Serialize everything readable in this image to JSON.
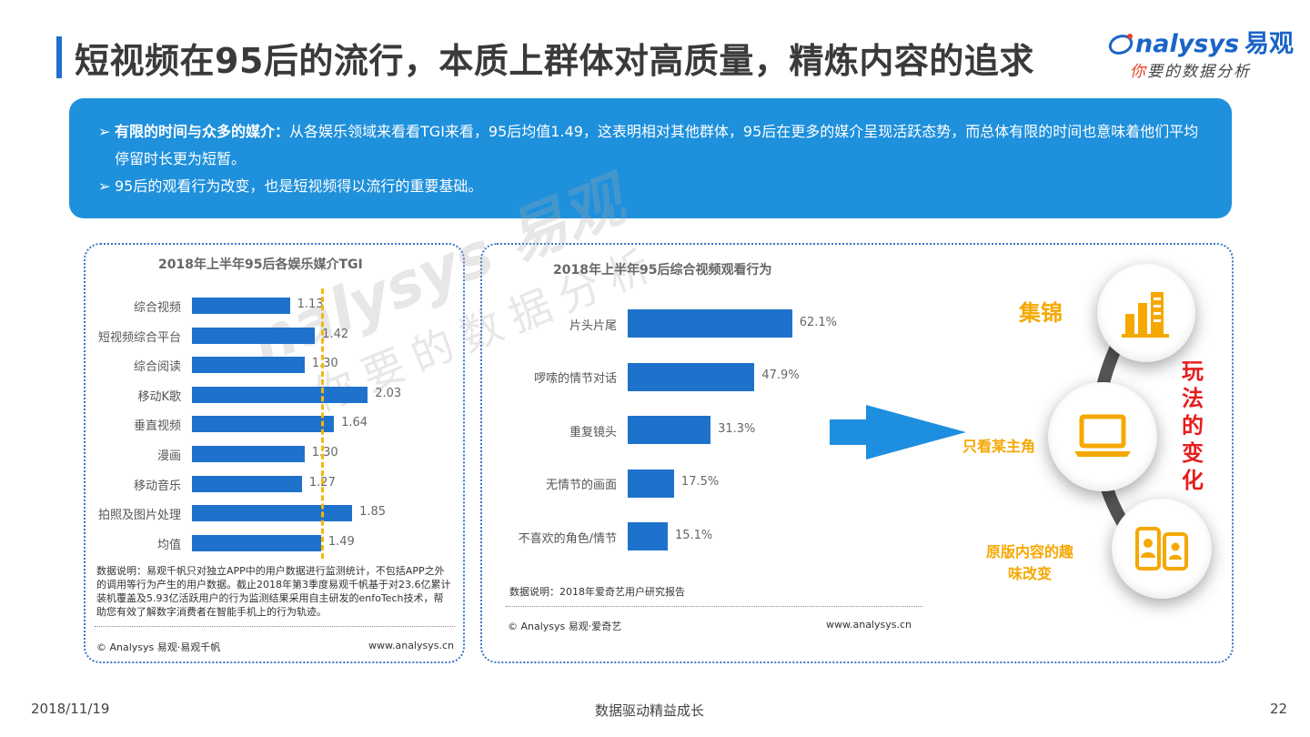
{
  "header": {
    "title": "短视频在95后的流行，本质上群体对高质量，精炼内容的追求"
  },
  "logo": {
    "brand": "nalysys",
    "brand_cn": "易观",
    "tagline_first": "你",
    "tagline_rest": "要的数据分析"
  },
  "banner": {
    "marker": "➢",
    "bullet1_bold": "有限的时间与众多的媒介：",
    "bullet1_text": "从各娱乐领域来看看TGI来看，95后均值1.49，这表明相对其他群体，95后在更多的媒介呈现活跃态势，而总体有限的时间也意味着他们平均停留时长更为短暂。",
    "bullet2_text": "95后的观看行为改变，也是短视频得以流行的重要基础。"
  },
  "chart_data": [
    {
      "type": "bar",
      "orientation": "horizontal",
      "title": "2018年上半年95后各娱乐媒介TGI",
      "categories": [
        "综合视频",
        "短视频综合平台",
        "综合阅读",
        "移动K歌",
        "垂直视频",
        "漫画",
        "移动音乐",
        "拍照及图片处理",
        "均值"
      ],
      "values": [
        1.13,
        1.42,
        1.3,
        2.03,
        1.64,
        1.3,
        1.27,
        1.85,
        1.49
      ],
      "value_labels": [
        "1.13",
        "1.42",
        "1.30",
        "2.03",
        "1.64",
        "1.30",
        "1.27",
        "1.85",
        "1.49"
      ],
      "reference_line": 1.49,
      "xlim": [
        0,
        2.5
      ]
    },
    {
      "type": "bar",
      "orientation": "horizontal",
      "title": "2018年上半年95后综合视频观看行为",
      "categories": [
        "片头片尾",
        "啰嗦的情节对话",
        "重复镜头",
        "无情节的画面",
        "不喜欢的角色/情节"
      ],
      "values": [
        62.1,
        47.9,
        31.3,
        17.5,
        15.1
      ],
      "value_labels": [
        "62.1%",
        "47.9%",
        "31.3%",
        "17.5%",
        "15.1%"
      ],
      "xlim": [
        0,
        100
      ]
    }
  ],
  "left_panel": {
    "note": "数据说明：易观千帆只对独立APP中的用户数据进行监测统计，不包括APP之外的调用等行为产生的用户数据。截止2018年第3季度易观千帆基于对23.6亿累计装机覆盖及5.93亿活跃用户的行为监测结果采用自主研发的enfoTech技术，帮助您有效了解数字消费者在智能手机上的行为轨迹。",
    "copyright": "© Analysys 易观·易观千帆",
    "url": "www.analysys.cn"
  },
  "right_panel": {
    "note": "数据说明：2018年爱奇艺用户研究报告",
    "copyright": "© Analysys 易观·爱奇艺",
    "url": "www.analysys.cn"
  },
  "infographic": {
    "item1": "集锦",
    "item2": "只看某主角",
    "item3_line1": "原版内容的趣",
    "item3_line2": "味改变",
    "side_text": [
      "玩",
      "法",
      "的",
      "变",
      "化"
    ],
    "icon1": "building-chart-icon",
    "icon2": "laptop-icon",
    "icon3": "mobile-users-icon",
    "accent": "#f5a800",
    "highlight": "#e61e1e"
  },
  "watermark": {
    "brand": "nalysys 易观",
    "tagline": "你要的数据分析"
  },
  "footer": {
    "date": "2018/11/19",
    "slogan": "数据驱动精益成长",
    "page": "22"
  }
}
